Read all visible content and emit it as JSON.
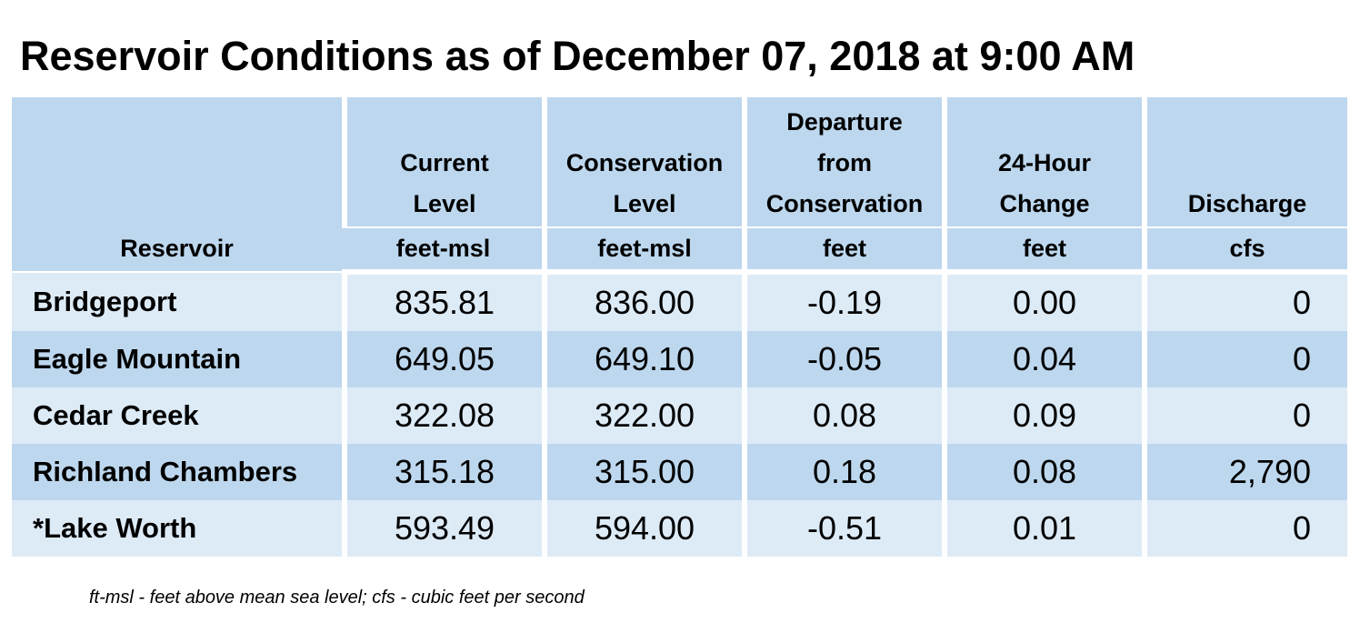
{
  "title": "Reservoir Conditions as of December 07, 2018 at 9:00 AM",
  "columns": [
    {
      "label_lines": [
        "Reservoir"
      ],
      "units": ""
    },
    {
      "label_lines": [
        "Current",
        "Level"
      ],
      "units": "feet-msl"
    },
    {
      "label_lines": [
        "Conservation",
        "Level"
      ],
      "units": "feet-msl"
    },
    {
      "label_lines": [
        "Departure",
        "from",
        "Conservation"
      ],
      "units": "feet"
    },
    {
      "label_lines": [
        "24-Hour",
        "Change"
      ],
      "units": "feet"
    },
    {
      "label_lines": [
        "Discharge"
      ],
      "units": "cfs"
    }
  ],
  "rows": [
    {
      "reservoir": "Bridgeport",
      "current_level": "835.81",
      "conservation_level": "836.00",
      "departure": "-0.19",
      "change_24h": "0.00",
      "discharge": "0"
    },
    {
      "reservoir": "Eagle Mountain",
      "current_level": "649.05",
      "conservation_level": "649.10",
      "departure": "-0.05",
      "change_24h": "0.04",
      "discharge": "0"
    },
    {
      "reservoir": "Cedar Creek",
      "current_level": "322.08",
      "conservation_level": "322.00",
      "departure": "0.08",
      "change_24h": "0.09",
      "discharge": "0"
    },
    {
      "reservoir": "Richland Chambers",
      "current_level": "315.18",
      "conservation_level": "315.00",
      "departure": "0.18",
      "change_24h": "0.08",
      "discharge": "2,790"
    },
    {
      "reservoir": "*Lake Worth",
      "current_level": "593.49",
      "conservation_level": "594.00",
      "departure": "-0.51",
      "change_24h": "0.01",
      "discharge": "0"
    }
  ],
  "footnote": "ft-msl - feet above mean sea level; cfs - cubic feet per second",
  "colors": {
    "header_bg": "#bdd7ee",
    "row_light": "#ddebf7",
    "row_dark": "#bdd7ee",
    "text": "#000000"
  }
}
